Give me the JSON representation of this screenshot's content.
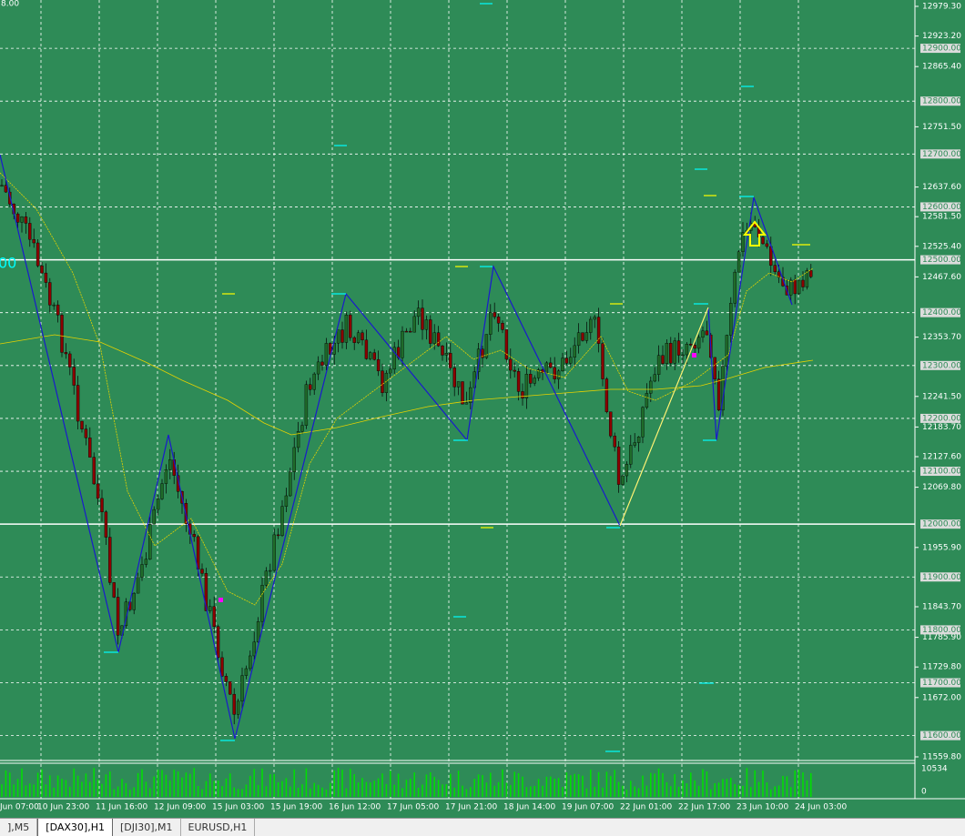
{
  "corner_label": "8.00",
  "left_marker": "00",
  "price_axis": [
    {
      "value": 12979.3,
      "label": "12979.30"
    },
    {
      "value": 12923.2,
      "label": "12923.20"
    },
    {
      "value": 12865.4,
      "label": "12865.40"
    },
    {
      "value": 12751.5,
      "label": "12751.50"
    },
    {
      "value": 12637.6,
      "label": "12637.60"
    },
    {
      "value": 12581.5,
      "label": "12581.50"
    },
    {
      "value": 12525.4,
      "label": "12525.40"
    },
    {
      "value": 12467.6,
      "label": "12467.60"
    },
    {
      "value": 12353.7,
      "label": "12353.70"
    },
    {
      "value": 12241.5,
      "label": "12241.50"
    },
    {
      "value": 12183.7,
      "label": "12183.70"
    },
    {
      "value": 12127.6,
      "label": "12127.60"
    },
    {
      "value": 12069.8,
      "label": "12069.80"
    },
    {
      "value": 11955.9,
      "label": "11955.90"
    },
    {
      "value": 11843.7,
      "label": "11843.70"
    },
    {
      "value": 11785.9,
      "label": "11785.90"
    },
    {
      "value": 11729.8,
      "label": "11729.80"
    },
    {
      "value": 11672,
      "label": "11672.00"
    },
    {
      "value": 11559.8,
      "label": "11559.80"
    }
  ],
  "levels": [
    {
      "value": 12900,
      "label": "12900.00"
    },
    {
      "value": 12800,
      "label": "12800.00"
    },
    {
      "value": 12700,
      "label": "12700.00"
    },
    {
      "value": 12600,
      "label": "12600.00"
    },
    {
      "value": 12500,
      "label": "12500.00"
    },
    {
      "value": 12400,
      "label": "12400.00"
    },
    {
      "value": 12300,
      "label": "12300.00"
    },
    {
      "value": 12200,
      "label": "12200.00"
    },
    {
      "value": 12100,
      "label": "12100.00"
    },
    {
      "value": 12000,
      "label": "12000.00"
    },
    {
      "value": 11900,
      "label": "11900.00"
    },
    {
      "value": 11800,
      "label": "11800.00"
    },
    {
      "value": 11700,
      "label": "11700.00"
    },
    {
      "value": 11600,
      "label": "11600.00"
    }
  ],
  "volume_axis": [
    "10534",
    "0"
  ],
  "time_axis": [
    "Jun 07:00",
    "10 Jun 23:00",
    "11 Jun 16:00",
    "12 Jun 09:00",
    "15 Jun 03:00",
    "15 Jun 19:00",
    "16 Jun 12:00",
    "17 Jun 05:00",
    "17 Jun 21:00",
    "18 Jun 14:00",
    "19 Jun 07:00",
    "22 Jun 01:00",
    "22 Jun 17:00",
    "23 Jun 10:00",
    "24 Jun 03:00"
  ],
  "tabs": [
    "],M5",
    "[DAX30],H1",
    "[DJI30],M1",
    "EURUSD,H1"
  ]
}
